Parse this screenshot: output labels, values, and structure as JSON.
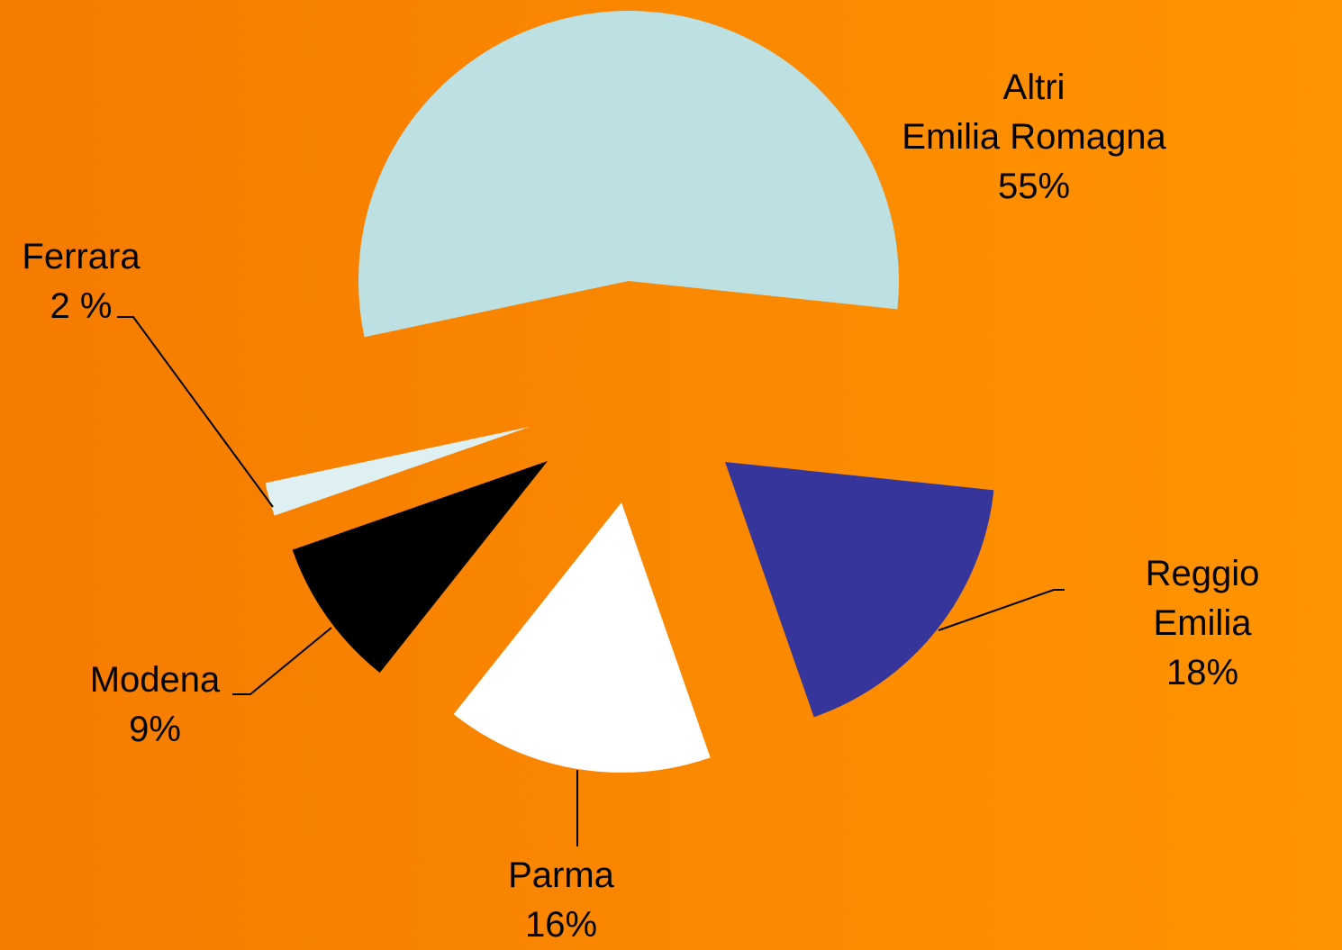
{
  "chart_data": {
    "type": "pie",
    "categories": [
      "Altri\nEmilia Romagna",
      "Reggio Emilia",
      "Parma",
      "Modena",
      "Ferrara"
    ],
    "values": [
      55,
      18,
      16,
      9,
      2
    ],
    "value_labels": [
      "55%",
      "18%",
      "16%",
      "9%",
      "2 %"
    ],
    "colors": [
      "#bde0e3",
      "#35359b",
      "#ffffff",
      "#000000",
      "#dff0f2"
    ]
  }
}
